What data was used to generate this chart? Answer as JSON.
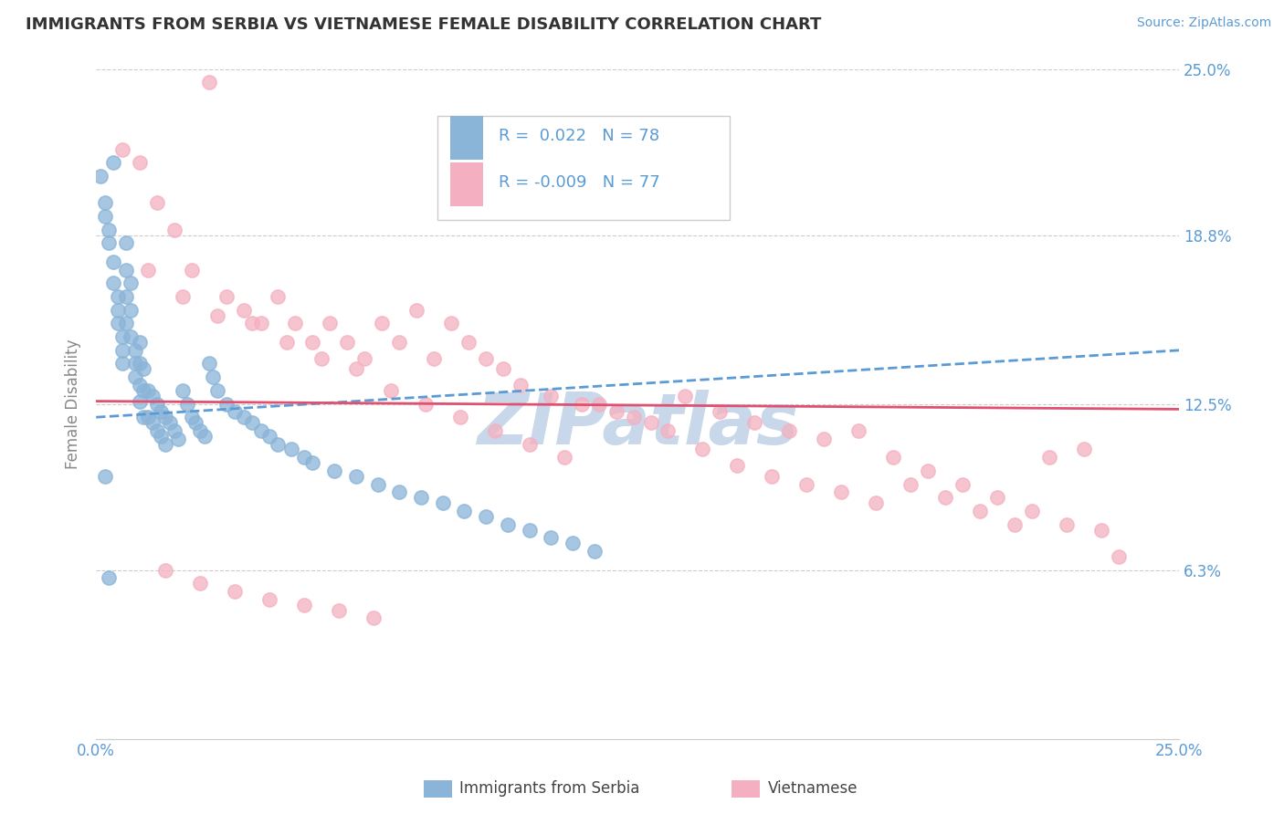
{
  "title": "IMMIGRANTS FROM SERBIA VS VIETNAMESE FEMALE DISABILITY CORRELATION CHART",
  "source_text": "Source: ZipAtlas.com",
  "ylabel": "Female Disability",
  "legend_label1": "Immigrants from Serbia",
  "legend_label2": "Vietnamese",
  "r1": 0.022,
  "n1": 78,
  "r2": -0.009,
  "n2": 77,
  "xmin": 0.0,
  "xmax": 0.25,
  "ymin": 0.0,
  "ymax": 0.25,
  "yticks": [
    0.0,
    0.063,
    0.125,
    0.188,
    0.25
  ],
  "ytick_labels": [
    "",
    "6.3%",
    "12.5%",
    "18.8%",
    "25.0%"
  ],
  "color1": "#8ab4d8",
  "color2": "#f4b0c0",
  "line1_color": "#5b9bd5",
  "line2_color": "#e05070",
  "grid_color": "#cccccc",
  "title_color": "#333333",
  "axis_label_color": "#5b9bd5",
  "watermark_color": "#c8d8ea",
  "background_color": "#ffffff",
  "serbia_x": [
    0.001,
    0.002,
    0.002,
    0.003,
    0.003,
    0.004,
    0.004,
    0.004,
    0.005,
    0.005,
    0.005,
    0.006,
    0.006,
    0.006,
    0.007,
    0.007,
    0.007,
    0.007,
    0.008,
    0.008,
    0.008,
    0.009,
    0.009,
    0.009,
    0.01,
    0.01,
    0.01,
    0.01,
    0.011,
    0.011,
    0.011,
    0.012,
    0.012,
    0.013,
    0.013,
    0.014,
    0.014,
    0.015,
    0.015,
    0.016,
    0.016,
    0.017,
    0.018,
    0.019,
    0.02,
    0.021,
    0.022,
    0.023,
    0.024,
    0.025,
    0.026,
    0.027,
    0.028,
    0.03,
    0.032,
    0.034,
    0.036,
    0.038,
    0.04,
    0.042,
    0.045,
    0.048,
    0.05,
    0.055,
    0.06,
    0.065,
    0.07,
    0.075,
    0.08,
    0.085,
    0.09,
    0.095,
    0.1,
    0.105,
    0.11,
    0.115,
    0.002,
    0.003
  ],
  "serbia_y": [
    0.21,
    0.2,
    0.195,
    0.19,
    0.185,
    0.215,
    0.178,
    0.17,
    0.165,
    0.16,
    0.155,
    0.15,
    0.145,
    0.14,
    0.185,
    0.175,
    0.165,
    0.155,
    0.17,
    0.16,
    0.15,
    0.145,
    0.14,
    0.135,
    0.148,
    0.14,
    0.132,
    0.126,
    0.138,
    0.13,
    0.12,
    0.13,
    0.12,
    0.128,
    0.118,
    0.125,
    0.115,
    0.122,
    0.113,
    0.12,
    0.11,
    0.118,
    0.115,
    0.112,
    0.13,
    0.125,
    0.12,
    0.118,
    0.115,
    0.113,
    0.14,
    0.135,
    0.13,
    0.125,
    0.122,
    0.12,
    0.118,
    0.115,
    0.113,
    0.11,
    0.108,
    0.105,
    0.103,
    0.1,
    0.098,
    0.095,
    0.092,
    0.09,
    0.088,
    0.085,
    0.083,
    0.08,
    0.078,
    0.075,
    0.073,
    0.07,
    0.098,
    0.06
  ],
  "viet_x": [
    0.006,
    0.01,
    0.014,
    0.018,
    0.022,
    0.026,
    0.03,
    0.034,
    0.038,
    0.042,
    0.046,
    0.05,
    0.054,
    0.058,
    0.062,
    0.066,
    0.07,
    0.074,
    0.078,
    0.082,
    0.086,
    0.09,
    0.094,
    0.098,
    0.105,
    0.112,
    0.12,
    0.128,
    0.136,
    0.144,
    0.152,
    0.16,
    0.168,
    0.176,
    0.184,
    0.192,
    0.2,
    0.208,
    0.216,
    0.224,
    0.232,
    0.012,
    0.02,
    0.028,
    0.036,
    0.044,
    0.052,
    0.06,
    0.068,
    0.076,
    0.084,
    0.092,
    0.1,
    0.108,
    0.116,
    0.124,
    0.132,
    0.14,
    0.148,
    0.156,
    0.164,
    0.172,
    0.18,
    0.188,
    0.196,
    0.204,
    0.212,
    0.22,
    0.228,
    0.236,
    0.016,
    0.024,
    0.032,
    0.04,
    0.048,
    0.056,
    0.064
  ],
  "viet_y": [
    0.22,
    0.215,
    0.2,
    0.19,
    0.175,
    0.245,
    0.165,
    0.16,
    0.155,
    0.165,
    0.155,
    0.148,
    0.155,
    0.148,
    0.142,
    0.155,
    0.148,
    0.16,
    0.142,
    0.155,
    0.148,
    0.142,
    0.138,
    0.132,
    0.128,
    0.125,
    0.122,
    0.118,
    0.128,
    0.122,
    0.118,
    0.115,
    0.112,
    0.115,
    0.105,
    0.1,
    0.095,
    0.09,
    0.085,
    0.08,
    0.078,
    0.175,
    0.165,
    0.158,
    0.155,
    0.148,
    0.142,
    0.138,
    0.13,
    0.125,
    0.12,
    0.115,
    0.11,
    0.105,
    0.125,
    0.12,
    0.115,
    0.108,
    0.102,
    0.098,
    0.095,
    0.092,
    0.088,
    0.095,
    0.09,
    0.085,
    0.08,
    0.105,
    0.108,
    0.068,
    0.063,
    0.058,
    0.055,
    0.052,
    0.05,
    0.048,
    0.045
  ]
}
